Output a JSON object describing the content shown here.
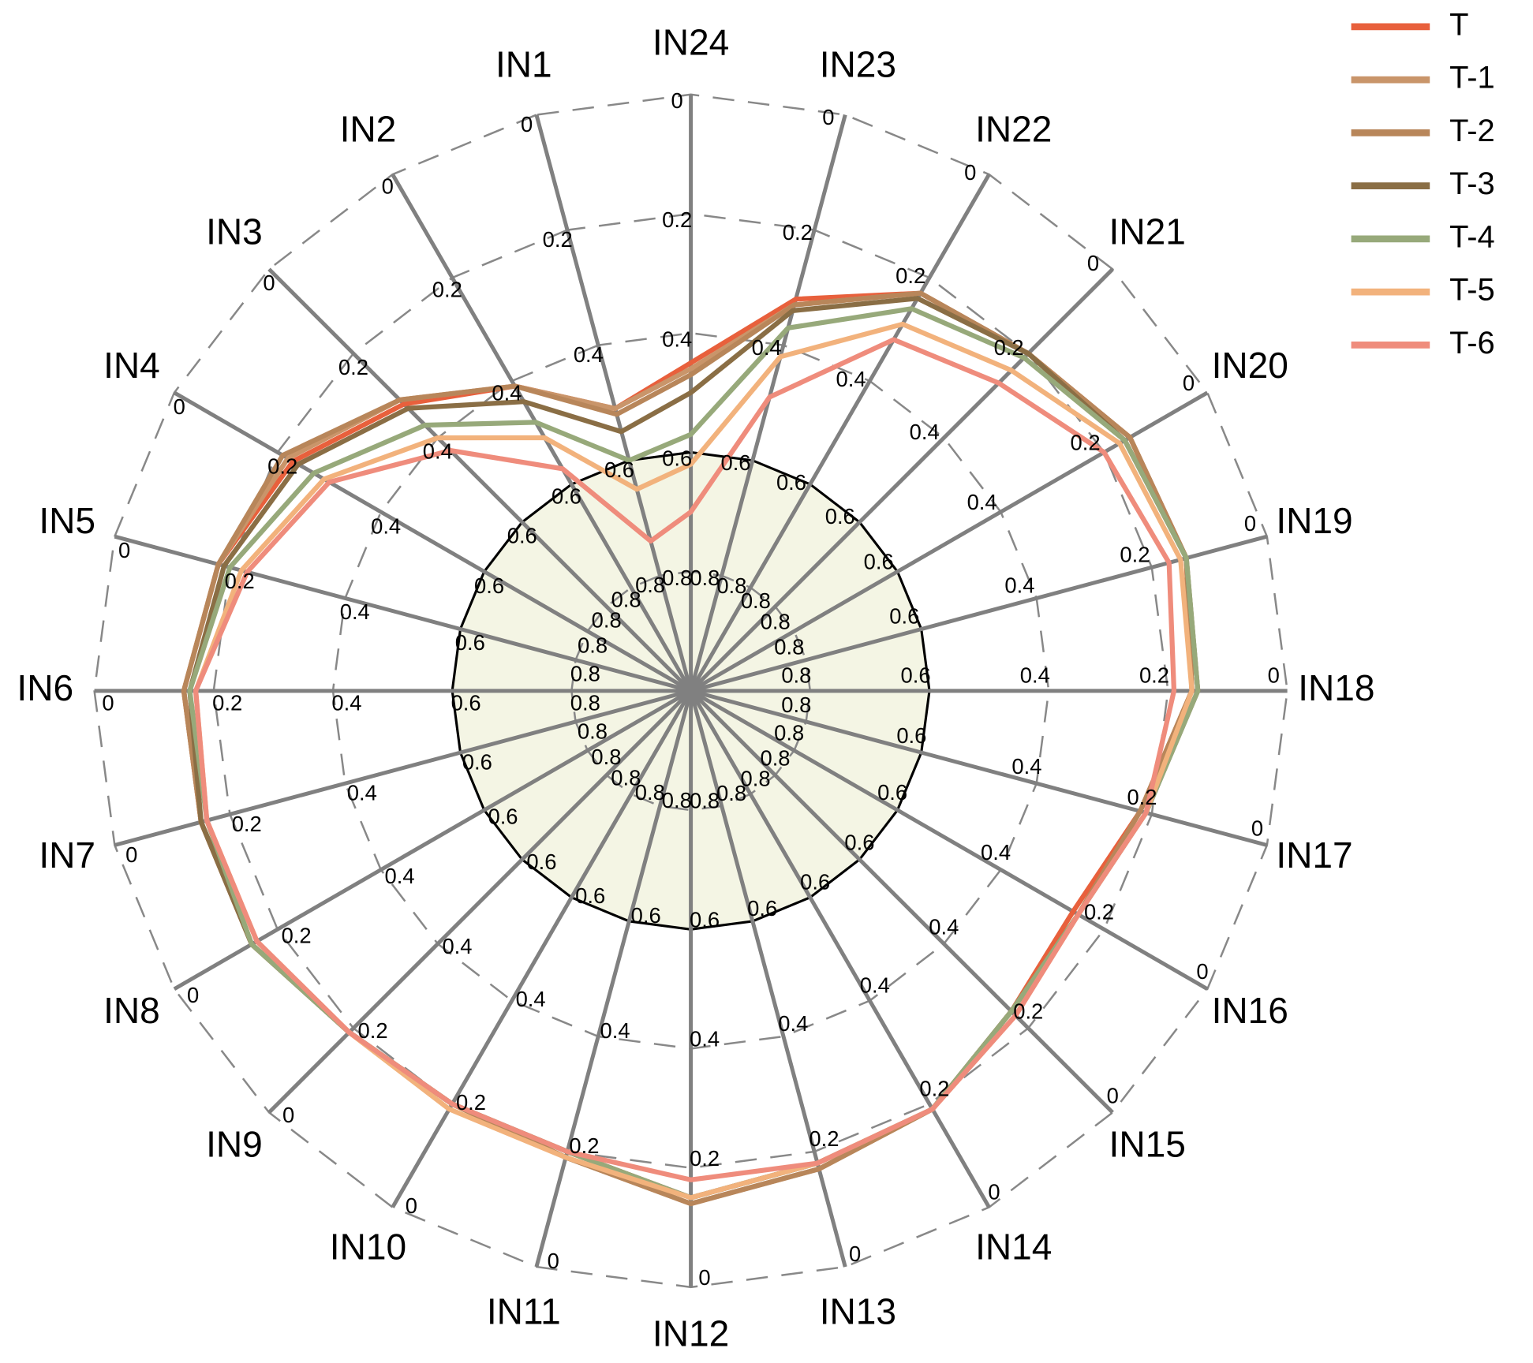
{
  "chart_data": {
    "type": "radar",
    "categories": [
      "IN1",
      "IN2",
      "IN3",
      "IN4",
      "IN5",
      "IN6",
      "IN7",
      "IN8",
      "IN9",
      "IN10",
      "IN11",
      "IN12",
      "IN13",
      "IN14",
      "IN15",
      "IN16",
      "IN17",
      "IN18",
      "IN19",
      "IN20",
      "IN21",
      "IN22",
      "IN23",
      "IN24"
    ],
    "rlim": [
      1,
      0
    ],
    "rticks": [
      0,
      0.2,
      0.4,
      0.6,
      0.8
    ],
    "highlight_ring": 0.6,
    "highlight_fill": "#f4f5e4",
    "series": [
      {
        "name": "T",
        "color": "#e8603c",
        "values": [
          0.51,
          0.41,
          0.32,
          0.23,
          0.18,
          0.15,
          0.15,
          0.15,
          0.19,
          0.2,
          0.2,
          0.15,
          0.18,
          0.19,
          0.24,
          0.26,
          0.22,
          0.16,
          0.14,
          0.15,
          0.2,
          0.23,
          0.32,
          0.45
        ]
      },
      {
        "name": "T-1",
        "color": "#c9956a",
        "values": [
          0.51,
          0.41,
          0.31,
          0.22,
          0.18,
          0.15,
          0.15,
          0.15,
          0.19,
          0.2,
          0.19,
          0.14,
          0.17,
          0.19,
          0.24,
          0.25,
          0.22,
          0.16,
          0.14,
          0.15,
          0.2,
          0.23,
          0.33,
          0.46
        ]
      },
      {
        "name": "T-2",
        "color": "#b8865a",
        "values": [
          0.52,
          0.41,
          0.31,
          0.21,
          0.18,
          0.15,
          0.15,
          0.15,
          0.19,
          0.2,
          0.19,
          0.14,
          0.17,
          0.19,
          0.24,
          0.25,
          0.22,
          0.16,
          0.14,
          0.15,
          0.2,
          0.23,
          0.33,
          0.47
        ]
      },
      {
        "name": "T-3",
        "color": "#8a6e45",
        "values": [
          0.55,
          0.44,
          0.33,
          0.24,
          0.19,
          0.16,
          0.15,
          0.15,
          0.19,
          0.2,
          0.2,
          0.15,
          0.18,
          0.19,
          0.24,
          0.25,
          0.21,
          0.15,
          0.14,
          0.16,
          0.2,
          0.24,
          0.34,
          0.5
        ]
      },
      {
        "name": "T-4",
        "color": "#97a97a",
        "values": [
          0.6,
          0.48,
          0.37,
          0.27,
          0.2,
          0.16,
          0.16,
          0.15,
          0.19,
          0.2,
          0.2,
          0.15,
          0.18,
          0.19,
          0.24,
          0.25,
          0.21,
          0.15,
          0.14,
          0.16,
          0.21,
          0.26,
          0.37,
          0.57
        ]
      },
      {
        "name": "T-5",
        "color": "#f2b27c",
        "values": [
          0.65,
          0.51,
          0.4,
          0.29,
          0.22,
          0.17,
          0.16,
          0.16,
          0.19,
          0.19,
          0.19,
          0.15,
          0.18,
          0.19,
          0.23,
          0.25,
          0.21,
          0.16,
          0.15,
          0.17,
          0.24,
          0.29,
          0.42,
          0.62
        ]
      },
      {
        "name": "T-6",
        "color": "#ef8c7c",
        "values": [
          0.74,
          0.57,
          0.43,
          0.3,
          0.23,
          0.17,
          0.16,
          0.16,
          0.19,
          0.2,
          0.2,
          0.18,
          0.18,
          0.19,
          0.23,
          0.25,
          0.21,
          0.19,
          0.17,
          0.2,
          0.27,
          0.32,
          0.49,
          0.7
        ]
      }
    ]
  }
}
